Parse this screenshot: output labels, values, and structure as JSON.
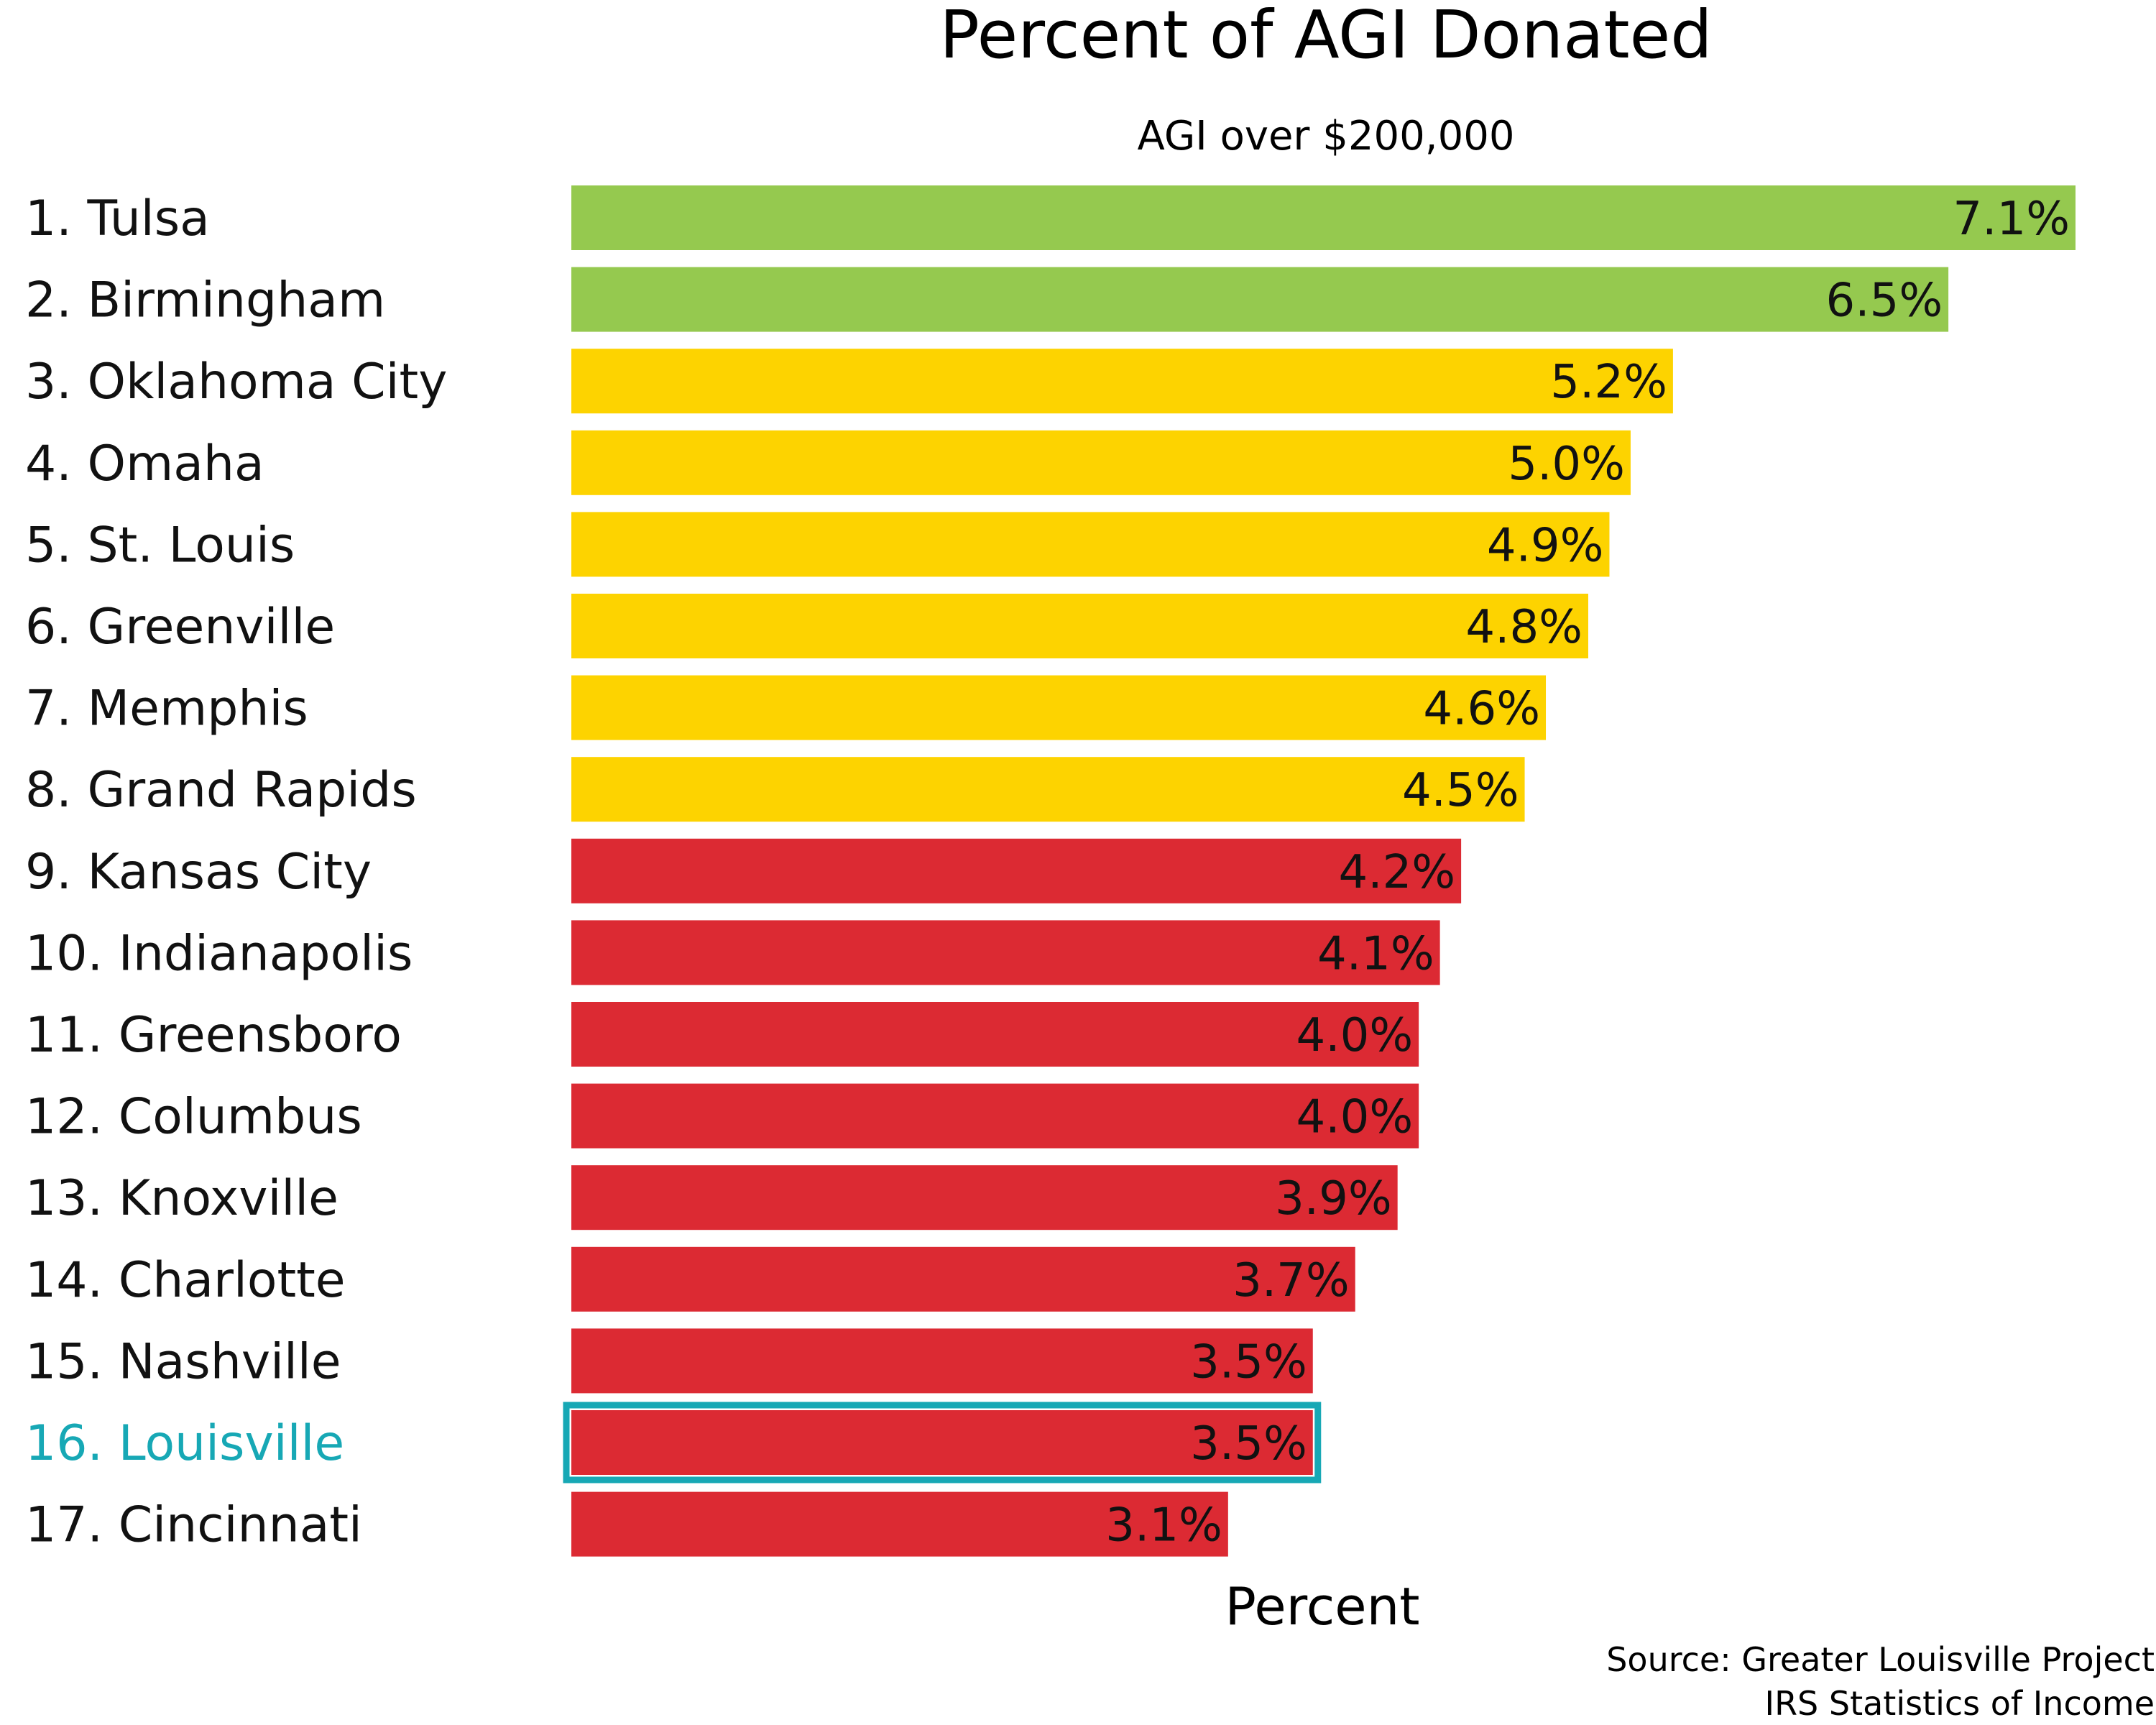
{
  "chart_data": {
    "type": "bar",
    "orientation": "horizontal",
    "title": "Percent of AGI Donated",
    "subtitle": "AGI over $200,000",
    "xlabel": "Percent",
    "ylabel": "",
    "xlim": [
      0,
      7.4
    ],
    "grid": false,
    "legend": "none",
    "categories": [
      "1. Tulsa",
      "2. Birmingham",
      "3. Oklahoma City",
      "4. Omaha",
      "5. St. Louis",
      "6. Greenville",
      "7. Memphis",
      "8. Grand Rapids",
      "9. Kansas City",
      "10. Indianapolis",
      "11. Greensboro",
      "12. Columbus",
      "13. Knoxville",
      "14. Charlotte",
      "15. Nashville",
      "16. Louisville",
      "17. Cincinnati"
    ],
    "values": [
      7.1,
      6.5,
      5.2,
      5.0,
      4.9,
      4.8,
      4.6,
      4.5,
      4.2,
      4.1,
      4.0,
      4.0,
      3.9,
      3.7,
      3.5,
      3.5,
      3.1
    ],
    "value_labels": [
      "7.1%",
      "6.5%",
      "5.2%",
      "5.0%",
      "4.9%",
      "4.8%",
      "4.6%",
      "4.5%",
      "4.2%",
      "4.1%",
      "4.0%",
      "4.0%",
      "3.9%",
      "3.7%",
      "3.5%",
      "3.5%",
      "3.1%"
    ],
    "bar_colors": [
      "#95c94f",
      "#95c94f",
      "#fdd300",
      "#fdd300",
      "#fdd300",
      "#fdd300",
      "#fdd300",
      "#fdd300",
      "#dc2a33",
      "#dc2a33",
      "#dc2a33",
      "#dc2a33",
      "#dc2a33",
      "#dc2a33",
      "#dc2a33",
      "#dc2a33",
      "#dc2a33"
    ],
    "highlight_category": "16. Louisville",
    "highlight_color": "#17a8b5",
    "label_color": "#111111",
    "source_lines": [
      "Source: Greater Louisville Project",
      "IRS Statistics of Income"
    ]
  }
}
